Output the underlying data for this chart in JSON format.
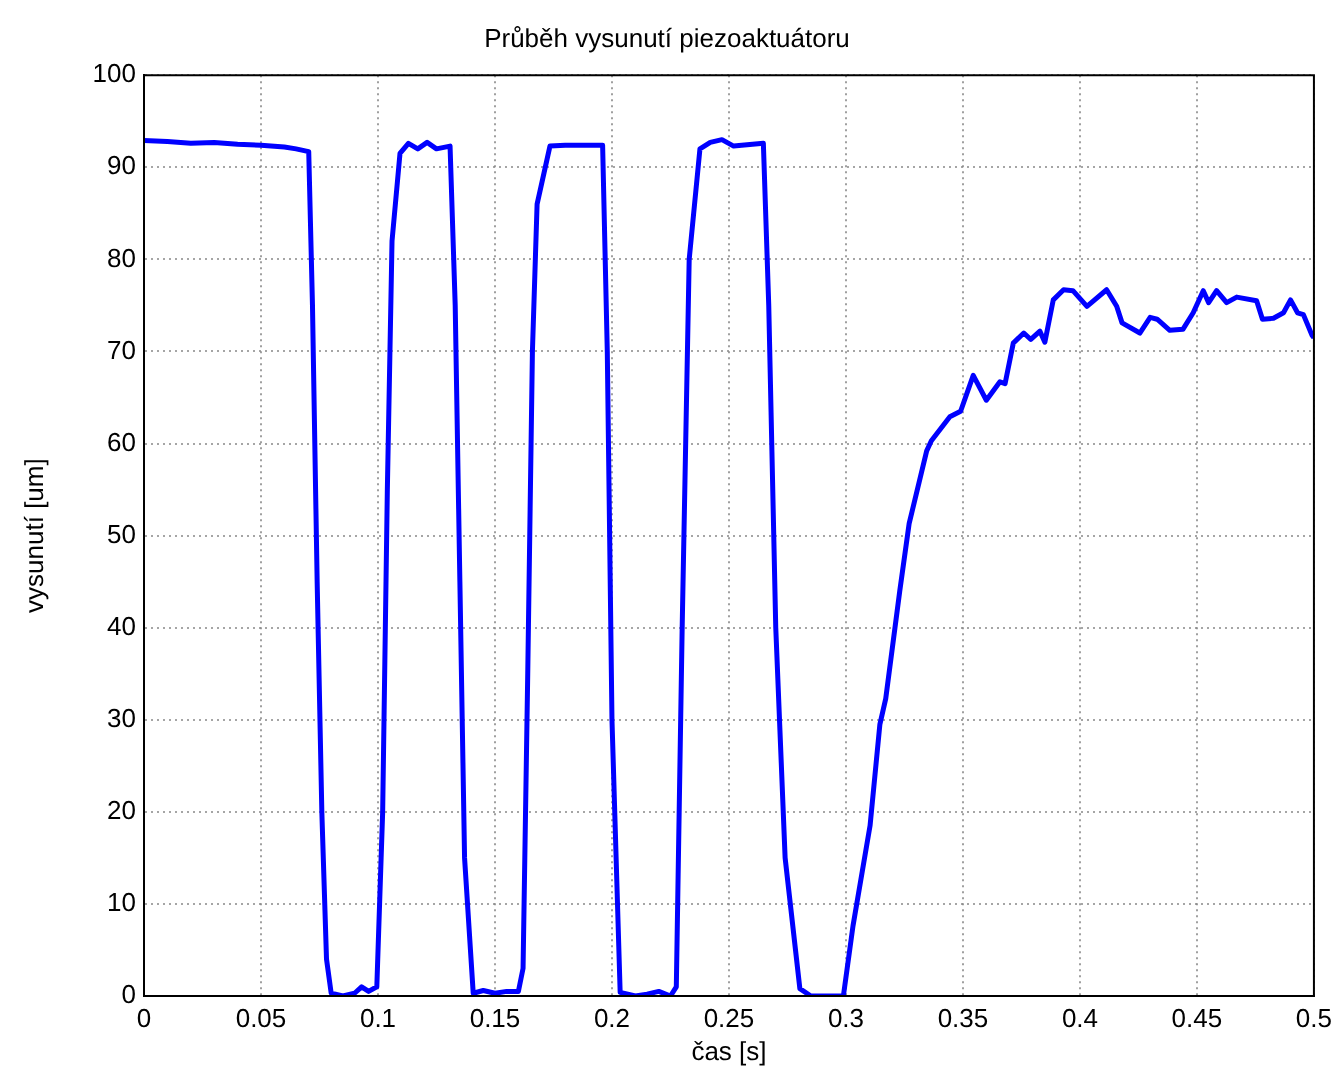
{
  "chart_data": {
    "type": "line",
    "title": "Průběh vysunutí piezoaktuátoru",
    "xlabel": "čas [s]",
    "ylabel": "vysunutí [um]",
    "xlim": [
      0,
      0.5
    ],
    "xticks": [
      0,
      0.05,
      0.1,
      0.15,
      0.2,
      0.25,
      0.3,
      0.35,
      0.4,
      0.45,
      0.5
    ],
    "ylim": [
      0,
      100
    ],
    "yticks": [
      0,
      10,
      20,
      30,
      40,
      50,
      60,
      70,
      80,
      90,
      100
    ],
    "grid": true,
    "legend": false,
    "marker": "none",
    "line_style": "solid",
    "series": [
      {
        "color": "#0000ff",
        "x": [
          0,
          0.01,
          0.02,
          0.03,
          0.04,
          0.05,
          0.06,
          0.065,
          0.0704,
          0.072,
          0.074,
          0.076,
          0.078,
          0.08,
          0.085,
          0.09,
          0.093,
          0.096,
          0.0995,
          0.102,
          0.104,
          0.106,
          0.1094,
          0.113,
          0.117,
          0.121,
          0.125,
          0.1308,
          0.133,
          0.135,
          0.137,
          0.1407,
          0.145,
          0.15,
          0.155,
          0.16,
          0.162,
          0.164,
          0.166,
          0.168,
          0.1735,
          0.18,
          0.19,
          0.196,
          0.198,
          0.2,
          0.2035,
          0.21,
          0.215,
          0.22,
          0.225,
          0.2275,
          0.23,
          0.233,
          0.2376,
          0.242,
          0.247,
          0.252,
          0.2647,
          0.267,
          0.27,
          0.274,
          0.2803,
          0.285,
          0.29,
          0.2989,
          0.303,
          0.3103,
          0.3145,
          0.317,
          0.323,
          0.327,
          0.3345,
          0.3365,
          0.3444,
          0.349,
          0.3544,
          0.36,
          0.3658,
          0.368,
          0.3715,
          0.376,
          0.379,
          0.3829,
          0.385,
          0.3886,
          0.393,
          0.397,
          0.403,
          0.4114,
          0.4157,
          0.418,
          0.4256,
          0.43,
          0.433,
          0.4384,
          0.444,
          0.4484,
          0.4527,
          0.455,
          0.4584,
          0.4627,
          0.467,
          0.4755,
          0.478,
          0.4827,
          0.487,
          0.49,
          0.493,
          0.4955,
          0.4991,
          0.5
        ],
        "values": [
          92.9,
          92.8,
          92.6,
          92.7,
          92.5,
          92.4,
          92.2,
          92,
          91.7,
          75,
          45,
          20,
          4,
          0.3,
          0,
          0.3,
          1,
          0.5,
          1,
          20,
          55,
          82,
          91.5,
          92.6,
          92,
          92.7,
          92,
          92.3,
          75,
          45,
          15,
          0.3,
          0.6,
          0.3,
          0.5,
          0.5,
          3,
          35,
          70,
          86,
          92.3,
          92.4,
          92.4,
          92.4,
          70,
          30,
          0.4,
          0,
          0.2,
          0.5,
          0,
          1,
          40,
          80,
          92,
          92.7,
          93,
          92.3,
          92.6,
          75,
          40,
          15,
          0.8,
          0,
          0,
          0,
          7.6,
          18.5,
          29.5,
          32.3,
          44,
          51.3,
          59.2,
          60.3,
          62.9,
          63.5,
          67.4,
          64.7,
          66.7,
          66.5,
          70.9,
          72,
          71.3,
          72.2,
          71,
          75.6,
          76.7,
          76.6,
          74.9,
          76.7,
          74.9,
          73.1,
          72,
          73.7,
          73.5,
          72.3,
          72.4,
          74.2,
          76.6,
          75.3,
          76.6,
          75.3,
          75.9,
          75.5,
          73.5,
          73.6,
          74.2,
          75.6,
          74.2,
          74,
          71.8,
          71.5
        ]
      }
    ]
  }
}
